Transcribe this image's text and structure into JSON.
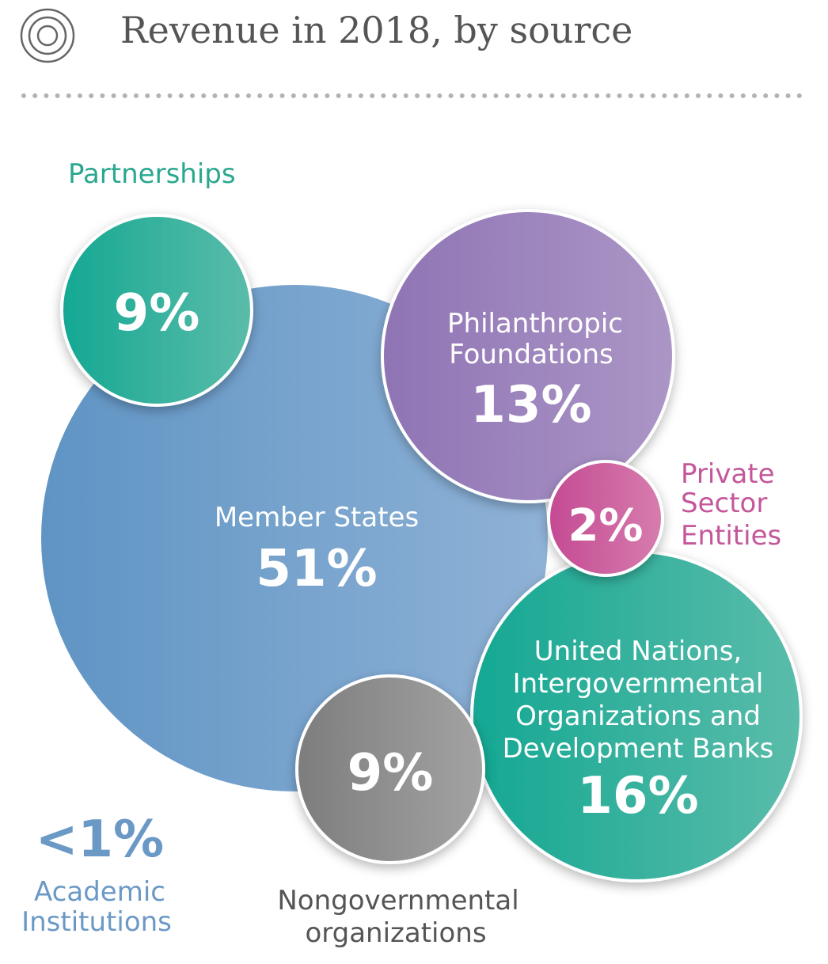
{
  "chart_data": {
    "type": "bubble",
    "title": "Revenue in 2018, by source",
    "unit": "%",
    "items": [
      {
        "name_lines": [
          "Member States"
        ],
        "value_label": "51%",
        "value": 51,
        "color": "#6f9fc9",
        "label_position": "inside"
      },
      {
        "name_lines": [
          "Philanthropic",
          "Foundations"
        ],
        "value_label": "13%",
        "value": 13,
        "color": "#9b7fba",
        "label_position": "inside"
      },
      {
        "name_lines": [
          "Partnerships"
        ],
        "value_label": "9%",
        "value": 9,
        "color": "#2bad9a",
        "label_position": "outside"
      },
      {
        "name_lines": [
          "Private",
          "Sector",
          "Entities"
        ],
        "value_label": "2%",
        "value": 2,
        "color": "#c95898",
        "label_position": "outside"
      },
      {
        "name_lines": [
          "United Nations,",
          "Intergovernmental",
          "Organizations and",
          "Development Banks"
        ],
        "value_label": "16%",
        "value": 16,
        "color": "#2bad9a",
        "label_position": "inside"
      },
      {
        "name_lines": [
          "Nongovernmental",
          "organizations"
        ],
        "value_label": "9%",
        "value": 9,
        "color": "#8c8c8c",
        "label_position": "outside"
      },
      {
        "name_lines": [
          "Academic",
          "Institutions"
        ],
        "value_label": "<1%",
        "value": 0.5,
        "color": "#6f9fc9",
        "label_position": "outside"
      }
    ]
  },
  "colors": {
    "title": "#555555",
    "divider": "#b3b3b3",
    "partnerships_label": "#2aa88f",
    "private_label": "#c4579a",
    "ngo_label": "#555555",
    "academic": "#6b99c6"
  },
  "icon": "concentric-circles-icon"
}
